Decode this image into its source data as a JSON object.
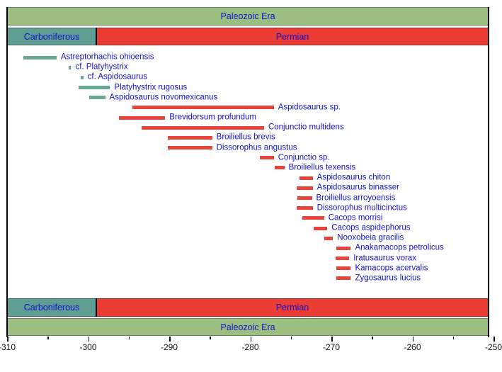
{
  "colors": {
    "era_green": "#9CBE81",
    "carboniferous_teal": "#5F9F93",
    "permian_red": "#EA3B34",
    "bar_teal": "#6AA695",
    "bar_red": "#E8443C",
    "label_blue": "#1313CE",
    "axis_text": "#111111",
    "frame_black": "#000000"
  },
  "chart_data": {
    "type": "bar",
    "subtype": "stratigraphic-range-chart",
    "orientation": "horizontal",
    "xlim": [
      -310,
      -250
    ],
    "x_major_ticks": [
      -310,
      -300,
      -290,
      -280,
      -270,
      -260,
      -250
    ],
    "x_tick_labels": [
      "-310",
      "-300",
      "-290",
      "-280",
      "-270",
      "-260",
      "-250"
    ],
    "x_minor_ticks": [
      -305,
      -295,
      -285,
      -275,
      -265,
      -255
    ],
    "grid": false,
    "eras": [
      {
        "label": "Paleozoic Era",
        "start": -310,
        "end": -250
      }
    ],
    "periods": [
      {
        "label": "Carboniferous",
        "start": -310,
        "end": -299,
        "color_key": "carboniferous_teal"
      },
      {
        "label": "Permian",
        "start": -299,
        "end": -250,
        "color_key": "permian_red"
      }
    ],
    "taxa": [
      {
        "name": "Astreptorhachis ohioensis",
        "start": -308.0,
        "end": -303.9,
        "group": "carboniferous"
      },
      {
        "name": "cf. Platyhystrix",
        "start": -302.4,
        "end": -302.1,
        "group": "carboniferous"
      },
      {
        "name": "cf. Aspidosaurus",
        "start": -300.9,
        "end": -300.6,
        "group": "carboniferous"
      },
      {
        "name": "Platyhystrix rugosus",
        "start": -301.2,
        "end": -297.3,
        "group": "carboniferous"
      },
      {
        "name": "Aspidosaurus novomexicanus",
        "start": -299.9,
        "end": -297.9,
        "group": "carboniferous"
      },
      {
        "name": "Aspidosaurus sp.",
        "start": -294.5,
        "end": -277.1,
        "group": "permian"
      },
      {
        "name": "Brevidorsum profundum",
        "start": -296.2,
        "end": -290.5,
        "group": "permian"
      },
      {
        "name": "Conjunctio multidens",
        "start": -293.4,
        "end": -278.3,
        "group": "permian"
      },
      {
        "name": "Broiliellus brevis",
        "start": -290.2,
        "end": -284.7,
        "group": "permian"
      },
      {
        "name": "Dissorophus angustus",
        "start": -290.2,
        "end": -284.7,
        "group": "permian"
      },
      {
        "name": "Conjunctio sp.",
        "start": -278.8,
        "end": -277.1,
        "group": "permian"
      },
      {
        "name": "Broiliellus texensis",
        "start": -277.0,
        "end": -275.8,
        "group": "permian"
      },
      {
        "name": "Aspidosaurus chiton",
        "start": -273.9,
        "end": -272.3,
        "group": "permian"
      },
      {
        "name": "Aspidosaurus binasser",
        "start": -274.3,
        "end": -272.3,
        "group": "permian"
      },
      {
        "name": "Broiliellus arroyoensis",
        "start": -274.2,
        "end": -272.4,
        "group": "permian"
      },
      {
        "name": "Dissorophus multicinctus",
        "start": -274.3,
        "end": -272.3,
        "group": "permian"
      },
      {
        "name": "Cacops morrisi",
        "start": -273.6,
        "end": -270.9,
        "group": "permian"
      },
      {
        "name": "Cacops aspidephorus",
        "start": -272.2,
        "end": -270.5,
        "group": "permian"
      },
      {
        "name": "Nooxobeia gracilis",
        "start": -270.9,
        "end": -269.8,
        "group": "permian"
      },
      {
        "name": "Anakamacops petrolicus",
        "start": -269.4,
        "end": -267.6,
        "group": "permian"
      },
      {
        "name": "Iratusaurus vorax",
        "start": -269.5,
        "end": -267.8,
        "group": "permian"
      },
      {
        "name": "Kamacops acervalis",
        "start": -269.4,
        "end": -267.6,
        "group": "permian"
      },
      {
        "name": "Zygosaurus lucius",
        "start": -269.4,
        "end": -267.6,
        "group": "permian"
      }
    ]
  }
}
